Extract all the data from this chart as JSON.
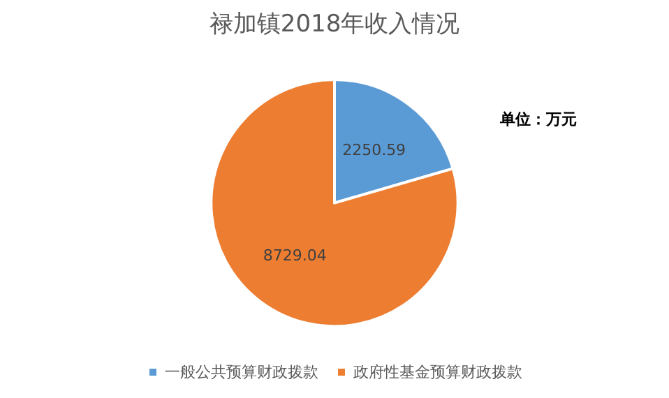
{
  "chart_data": {
    "type": "pie",
    "title": "禄加镇2018年收入情况",
    "annotations": [
      "单位：万元"
    ],
    "categories": [
      "一般公共预算财政拨款",
      "政府性基金预算财政拨款"
    ],
    "values": [
      2250.59,
      8729.04
    ],
    "colors": [
      "#5b9bd5",
      "#ed7d31"
    ],
    "data_labels": true,
    "legend": "bottom"
  }
}
